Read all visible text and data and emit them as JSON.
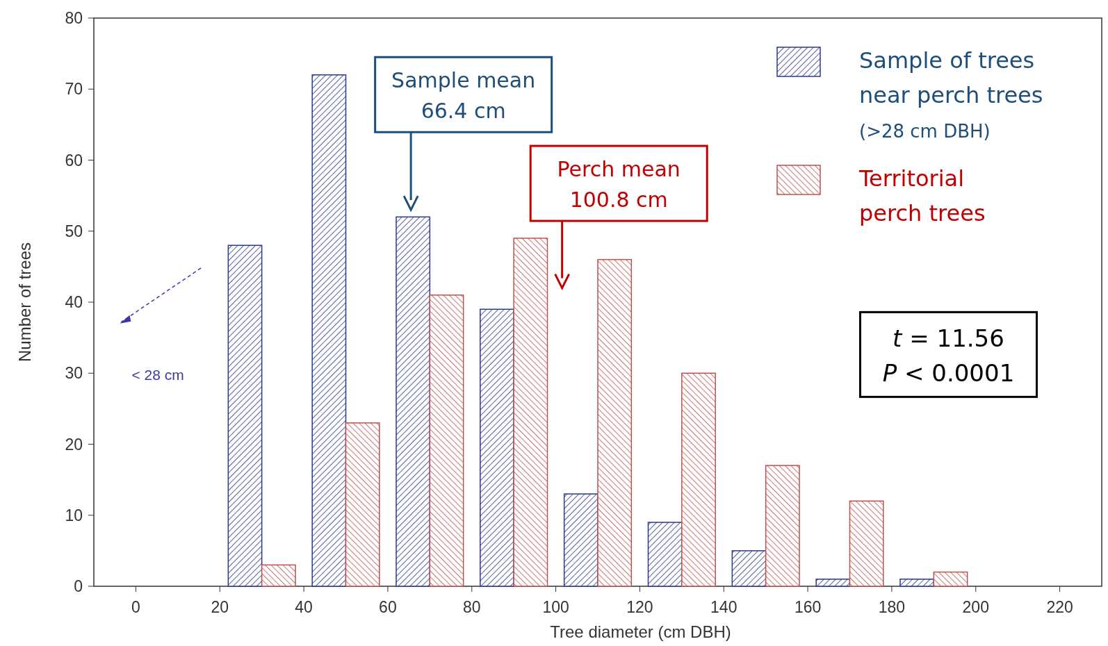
{
  "chart_data": {
    "type": "bar",
    "xlabel": "Tree diameter (cm DBH)",
    "ylabel": "Number of trees",
    "x": [
      30,
      50,
      70,
      90,
      110,
      130,
      150,
      170,
      190
    ],
    "series": [
      {
        "name": "Sample of trees near perch trees (>28 cm DBH)",
        "color": "#2b3990",
        "values": [
          48,
          72,
          52,
          39,
          13,
          9,
          5,
          1,
          1
        ]
      },
      {
        "name": "Territorial perch trees",
        "color": "#c0504d",
        "values": [
          3,
          23,
          41,
          49,
          46,
          30,
          17,
          12,
          2
        ]
      }
    ],
    "xlim": [
      -10,
      230
    ],
    "xticks": [
      0,
      20,
      40,
      60,
      80,
      100,
      120,
      140,
      160,
      180,
      200,
      220
    ],
    "ylim": [
      0,
      80
    ],
    "yticks": [
      0,
      10,
      20,
      30,
      40,
      50,
      60,
      70,
      80
    ],
    "legend": "top right",
    "annotations": [
      "Sample mean\n66.4 cm",
      "Perch mean\n100.8 cm",
      "< 28 cm",
      "t = 11.56\nP < 0.0001"
    ]
  }
}
